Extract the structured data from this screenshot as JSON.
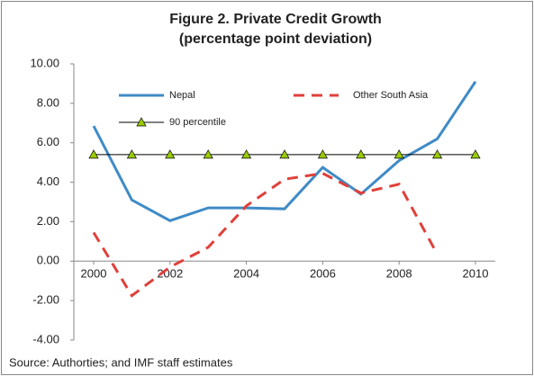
{
  "chart_data": {
    "type": "line",
    "title": "Figure 2. Private Credit Growth",
    "subtitle": "(percentage point deviation)",
    "x": [
      2000,
      2001,
      2002,
      2003,
      2004,
      2005,
      2006,
      2007,
      2008,
      2009,
      2010
    ],
    "xlim": [
      2000,
      2010
    ],
    "xticks": [
      2000,
      2002,
      2004,
      2006,
      2008,
      2010
    ],
    "ylim": [
      -4,
      10
    ],
    "yticks": [
      {
        "value": -4,
        "label": "-4.00"
      },
      {
        "value": -2,
        "label": "-2.00"
      },
      {
        "value": 0,
        "label": "0.00"
      },
      {
        "value": 2,
        "label": "2.00"
      },
      {
        "value": 4,
        "label": "4.00"
      },
      {
        "value": 6,
        "label": "6.00"
      },
      {
        "value": 8,
        "label": "8.00"
      },
      {
        "value": 10,
        "label": "10.00"
      }
    ],
    "grid": false,
    "series": [
      {
        "name": "Nepal",
        "color": "#3f8bc7",
        "values": [
          6.85,
          3.1,
          2.05,
          2.7,
          2.7,
          2.65,
          4.75,
          3.4,
          5.1,
          6.2,
          9.1
        ]
      },
      {
        "name": "Other South Asia",
        "color": "#e0403a",
        "dashed": true,
        "values": [
          1.45,
          -1.75,
          -0.3,
          0.7,
          2.8,
          4.15,
          4.45,
          3.45,
          3.9,
          0.35,
          null
        ]
      },
      {
        "name": "90 percentile",
        "color": "#000000",
        "marker": "triangle",
        "marker_color": "#99cc00",
        "values": [
          5.4,
          5.4,
          5.4,
          5.4,
          5.4,
          5.4,
          5.4,
          5.4,
          5.4,
          5.4,
          5.4
        ]
      }
    ],
    "source": "Source: Authorties; and IMF staff estimates"
  }
}
